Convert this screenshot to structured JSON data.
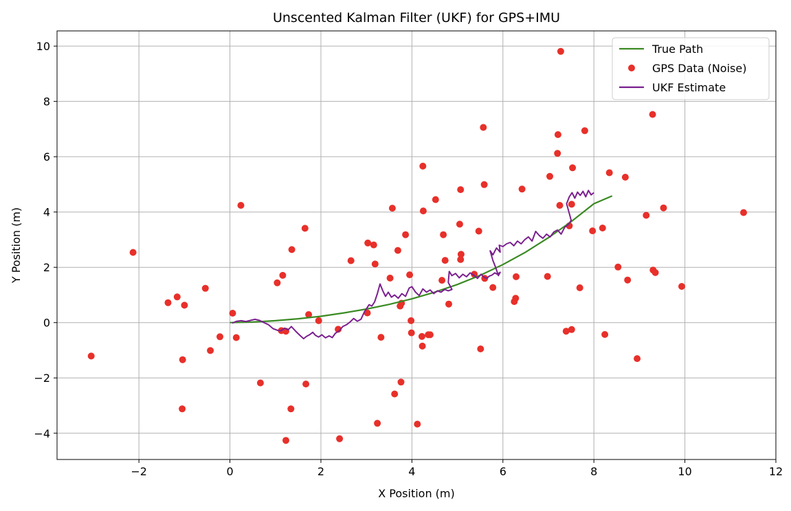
{
  "chart_data": {
    "type": "scatter",
    "title": "Unscented Kalman Filter (UKF) for GPS+IMU",
    "xlabel": "X Position (m)",
    "ylabel": "Y Position (m)",
    "xlim": [
      -3.8,
      12.0
    ],
    "ylim": [
      -4.95,
      10.55
    ],
    "xticks": [
      -2,
      0,
      2,
      4,
      6,
      8,
      10,
      12
    ],
    "yticks": [
      -4,
      -2,
      0,
      2,
      4,
      6,
      8,
      10
    ],
    "xtick_labels": [
      "−2",
      "0",
      "2",
      "4",
      "6",
      "8",
      "10",
      "12"
    ],
    "ytick_labels": [
      "−4",
      "−2",
      "0",
      "2",
      "4",
      "6",
      "8",
      "10"
    ],
    "grid": true,
    "legend_position": "upper right",
    "colors": {
      "true_path": "#3a8a22",
      "gps": "#e8302a",
      "ukf": "#7b1f8f"
    },
    "series": [
      {
        "name": "True Path",
        "type": "line",
        "x": [
          0,
          0.5,
          1,
          1.5,
          2,
          2.5,
          3,
          3.5,
          4,
          4.5,
          5,
          5.5,
          6,
          6.5,
          7,
          7.5,
          8,
          8.4
        ],
        "y": [
          0,
          0.02,
          0.07,
          0.14,
          0.23,
          0.35,
          0.49,
          0.66,
          0.86,
          1.1,
          1.38,
          1.71,
          2.1,
          2.55,
          3.07,
          3.65,
          4.3,
          4.58
        ]
      },
      {
        "name": "GPS Data (Noise)",
        "type": "scatter",
        "x": [
          -3.05,
          -2.13,
          -1.36,
          -1.16,
          -1.0,
          -1.04,
          -1.05,
          -0.54,
          -0.43,
          -0.22,
          0.06,
          0.14,
          0.24,
          0.67,
          1.04,
          1.13,
          1.16,
          1.23,
          1.23,
          1.34,
          1.36,
          1.65,
          1.67,
          1.73,
          1.95,
          2.38,
          2.41,
          2.66,
          3.02,
          3.03,
          3.16,
          3.19,
          3.24,
          3.32,
          3.52,
          3.57,
          3.62,
          3.69,
          3.74,
          3.76,
          3.77,
          3.86,
          3.95,
          3.98,
          3.99,
          4.12,
          4.22,
          4.23,
          4.24,
          4.25,
          4.36,
          4.4,
          4.52,
          4.66,
          4.69,
          4.73,
          4.81,
          5.05,
          5.07,
          5.07,
          5.08,
          5.37,
          5.47,
          5.51,
          5.57,
          5.59,
          5.6,
          5.78,
          6.25,
          6.28,
          6.29,
          6.42,
          6.98,
          7.03,
          7.2,
          7.21,
          7.25,
          7.27,
          7.39,
          7.46,
          7.51,
          7.51,
          7.53,
          7.69,
          7.8,
          7.97,
          8.19,
          8.24,
          8.34,
          8.53,
          8.69,
          8.74,
          8.95,
          9.15,
          9.29,
          9.3,
          9.35,
          9.53,
          9.93,
          11.29
        ],
        "y": [
          -1.21,
          2.54,
          0.72,
          0.93,
          0.63,
          -1.34,
          -3.12,
          1.24,
          -1.01,
          -0.51,
          0.34,
          -0.54,
          4.24,
          -2.18,
          1.44,
          -0.29,
          1.71,
          -0.31,
          -4.26,
          -3.12,
          2.64,
          3.41,
          -2.22,
          0.29,
          0.07,
          -0.24,
          -4.2,
          2.24,
          0.35,
          2.88,
          2.81,
          2.12,
          -3.64,
          -0.53,
          1.61,
          4.14,
          -2.58,
          2.61,
          0.6,
          -2.15,
          0.7,
          3.18,
          1.73,
          0.07,
          -0.37,
          -3.67,
          -0.5,
          -0.85,
          5.66,
          4.04,
          -0.44,
          -0.44,
          4.45,
          1.53,
          3.18,
          2.25,
          0.67,
          3.56,
          4.81,
          2.28,
          2.47,
          1.75,
          3.31,
          -0.95,
          7.06,
          4.99,
          1.6,
          1.27,
          0.76,
          0.88,
          1.66,
          4.83,
          1.67,
          5.29,
          6.12,
          6.8,
          4.24,
          9.81,
          -0.31,
          3.5,
          4.28,
          -0.25,
          5.6,
          1.26,
          6.94,
          3.32,
          3.42,
          -0.43,
          5.42,
          2.01,
          5.26,
          1.54,
          -1.3,
          3.88,
          7.53,
          1.9,
          1.81,
          4.15,
          1.31,
          3.98
        ]
      },
      {
        "name": "UKF Estimate",
        "type": "line",
        "x": [
          0.05,
          0.15,
          0.25,
          0.35,
          0.45,
          0.55,
          0.65,
          0.75,
          0.85,
          0.95,
          1.05,
          1.12,
          1.2,
          1.28,
          1.35,
          1.45,
          1.55,
          1.62,
          1.68,
          1.75,
          1.82,
          1.88,
          1.95,
          2.02,
          2.1,
          2.18,
          2.25,
          2.32,
          2.4,
          2.48,
          2.56,
          2.64,
          2.72,
          2.8,
          2.88,
          2.96,
          3.02,
          3.06,
          3.12,
          3.18,
          3.24,
          3.3,
          3.36,
          3.42,
          3.48,
          3.55,
          3.62,
          3.7,
          3.78,
          3.86,
          3.94,
          4.0,
          4.08,
          4.16,
          4.24,
          4.32,
          4.4,
          4.48,
          4.56,
          4.64,
          4.72,
          4.8,
          4.88,
          4.8,
          4.82,
          4.88,
          4.96,
          5.04,
          5.12,
          5.2,
          5.28,
          5.36,
          5.44,
          5.52,
          5.58,
          5.64,
          5.7,
          5.76,
          5.82,
          5.88,
          5.94,
          5.9,
          5.84,
          5.78,
          5.72,
          5.78,
          5.86,
          5.94,
          5.92,
          6.0,
          6.08,
          6.16,
          6.24,
          6.32,
          6.4,
          6.48,
          6.56,
          6.64,
          6.72,
          6.8,
          6.88,
          6.96,
          7.04,
          7.12,
          7.2,
          7.28,
          7.36,
          7.44,
          7.5,
          7.46,
          7.4,
          7.46,
          7.52,
          7.58,
          7.64,
          7.7,
          7.76,
          7.82,
          7.88,
          7.94,
          8.0
        ],
        "y": [
          -0.02,
          0.05,
          0.07,
          0.04,
          0.08,
          0.12,
          0.08,
          0.0,
          -0.08,
          -0.22,
          -0.28,
          -0.3,
          -0.2,
          -0.26,
          -0.14,
          -0.32,
          -0.48,
          -0.58,
          -0.5,
          -0.44,
          -0.35,
          -0.46,
          -0.52,
          -0.44,
          -0.55,
          -0.48,
          -0.54,
          -0.38,
          -0.3,
          -0.14,
          -0.08,
          0.02,
          0.15,
          0.05,
          0.12,
          0.4,
          0.55,
          0.65,
          0.6,
          0.75,
          1.05,
          1.4,
          1.15,
          0.95,
          1.1,
          0.92,
          1.0,
          0.88,
          1.05,
          0.95,
          1.25,
          1.3,
          1.1,
          0.98,
          1.22,
          1.1,
          1.18,
          1.05,
          1.15,
          1.1,
          1.2,
          1.15,
          1.2,
          1.45,
          1.85,
          1.7,
          1.78,
          1.62,
          1.75,
          1.66,
          1.8,
          1.72,
          1.6,
          1.75,
          1.65,
          1.6,
          1.68,
          1.72,
          1.8,
          1.75,
          1.82,
          1.7,
          2.0,
          2.25,
          2.6,
          2.45,
          2.7,
          2.55,
          2.8,
          2.75,
          2.85,
          2.9,
          2.78,
          2.95,
          2.85,
          3.0,
          3.1,
          2.95,
          3.3,
          3.15,
          3.05,
          3.2,
          3.1,
          3.28,
          3.35,
          3.2,
          3.45,
          3.55,
          3.7,
          3.95,
          4.3,
          4.55,
          4.7,
          4.5,
          4.72,
          4.6,
          4.75,
          4.55,
          4.78,
          4.62,
          4.7
        ]
      }
    ]
  }
}
